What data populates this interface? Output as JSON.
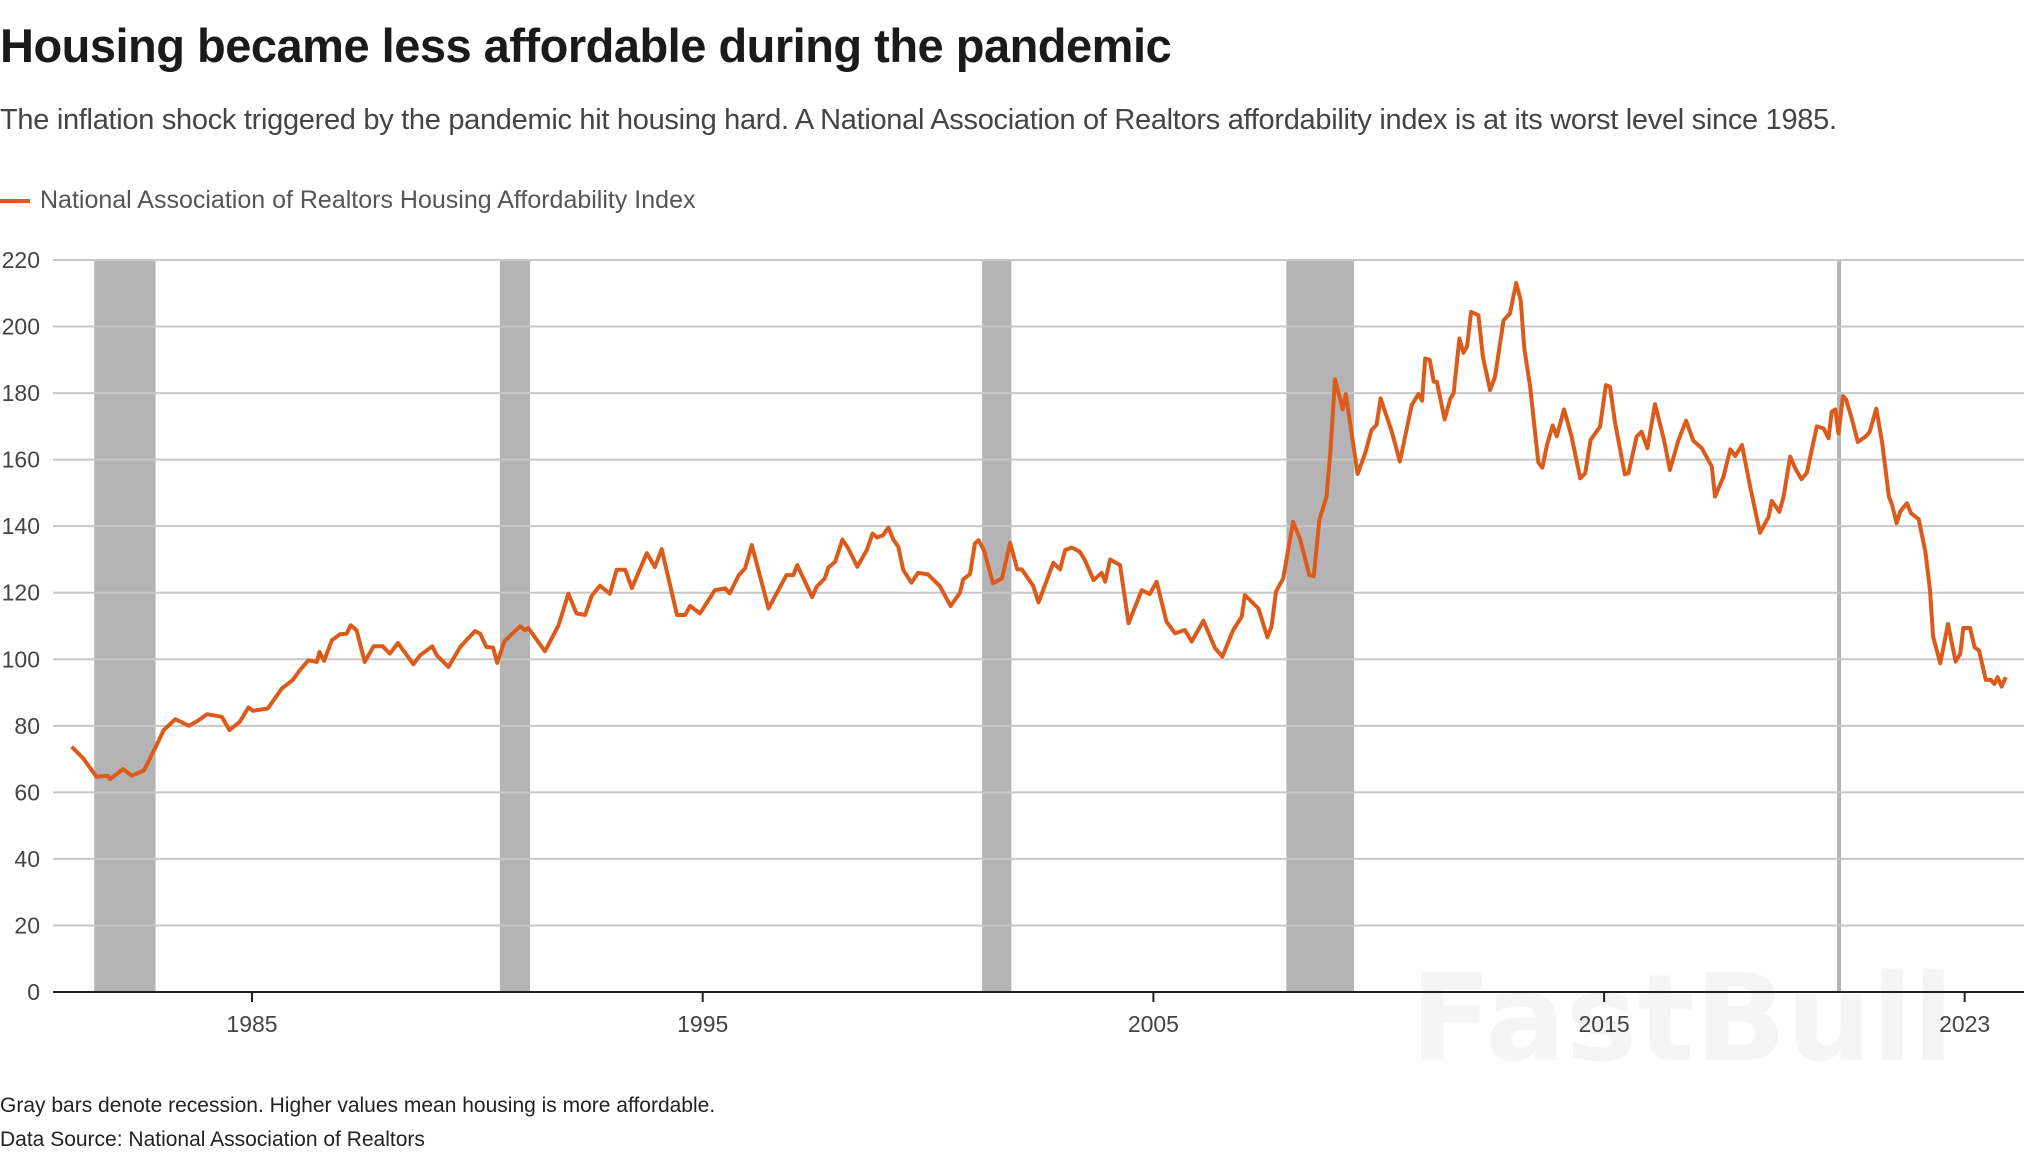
{
  "header": {
    "title": "Housing became less affordable during the pandemic",
    "subtitle": "The inflation shock triggered by the pandemic hit housing hard. A National Association of Realtors affordability index is at its worst level since 1985."
  },
  "footer": {
    "note": "Gray bars denote recession. Higher values mean housing is more affordable.",
    "source": "Data Source: National Association of Realtors"
  },
  "watermark": "FastBull",
  "colors": {
    "line": "#dc5b1a",
    "recession": "#b4b4b4",
    "grid": "#c8c8c8",
    "axis": "#222222"
  },
  "chart_data": {
    "type": "line",
    "title": "Housing became less affordable during the pandemic",
    "xlabel": "",
    "ylabel": "",
    "xlim": [
      1980.6,
      2024.3
    ],
    "ylim": [
      0,
      220
    ],
    "grid": true,
    "legend_placement": "top-left",
    "yticks": [
      "0",
      "20",
      "40",
      "60",
      "80",
      "100",
      "120",
      "140",
      "160",
      "180",
      "200",
      "220"
    ],
    "xticks": [
      {
        "value": 1985,
        "label": "1985"
      },
      {
        "value": 1995,
        "label": "1995"
      },
      {
        "value": 2005,
        "label": "2005"
      },
      {
        "value": 2015,
        "label": "2015"
      },
      {
        "value": 2023,
        "label": "2023"
      }
    ],
    "recessions": [
      [
        1981.5,
        1982.86
      ],
      [
        1990.5,
        1991.17
      ],
      [
        2001.2,
        2001.85
      ],
      [
        2007.95,
        2009.45
      ],
      [
        2020.17,
        2020.25
      ]
    ],
    "series": [
      {
        "name": "National Association of Realtors Housing Affordability Index",
        "color": "#dc5b1a",
        "points": [
          [
            1981.0,
            73.7
          ],
          [
            1981.25,
            70.3
          ],
          [
            1981.55,
            64.7
          ],
          [
            1981.8,
            65
          ],
          [
            1981.85,
            64
          ],
          [
            1982.14,
            67
          ],
          [
            1982.33,
            65
          ],
          [
            1982.6,
            66.5
          ],
          [
            1982.9,
            74.7
          ],
          [
            1983.04,
            78.7
          ],
          [
            1983.3,
            82
          ],
          [
            1983.6,
            80
          ],
          [
            1983.8,
            81.5
          ],
          [
            1984.0,
            83.5
          ],
          [
            1984.33,
            82.7
          ],
          [
            1984.5,
            78.7
          ],
          [
            1984.73,
            81.2
          ],
          [
            1984.92,
            85.5
          ],
          [
            1985.02,
            84.5
          ],
          [
            1985.35,
            85.2
          ],
          [
            1985.66,
            91.2
          ],
          [
            1985.9,
            93.7
          ],
          [
            1986.06,
            96.7
          ],
          [
            1986.25,
            99.7
          ],
          [
            1986.44,
            99.2
          ],
          [
            1986.5,
            102.2
          ],
          [
            1986.6,
            99.5
          ],
          [
            1986.77,
            105.7
          ],
          [
            1986.95,
            107.5
          ],
          [
            1987.1,
            107.7
          ],
          [
            1987.19,
            110.2
          ],
          [
            1987.32,
            108.7
          ],
          [
            1987.5,
            99.2
          ],
          [
            1987.7,
            103.9
          ],
          [
            1987.9,
            103.9
          ],
          [
            1988.06,
            101.7
          ],
          [
            1988.24,
            104.9
          ],
          [
            1988.58,
            98.5
          ],
          [
            1988.73,
            101.2
          ],
          [
            1989.0,
            103.9
          ],
          [
            1989.1,
            101.2
          ],
          [
            1989.36,
            97.7
          ],
          [
            1989.62,
            103.7
          ],
          [
            1989.77,
            105.9
          ],
          [
            1989.95,
            108.5
          ],
          [
            1990.06,
            107.7
          ],
          [
            1990.2,
            103.7
          ],
          [
            1990.35,
            103.5
          ],
          [
            1990.44,
            98.9
          ],
          [
            1990.6,
            105.4
          ],
          [
            1990.95,
            109.9
          ],
          [
            1991.06,
            108.7
          ],
          [
            1991.13,
            109.4
          ],
          [
            1991.5,
            102.4
          ],
          [
            1991.8,
            110.2
          ],
          [
            1992.02,
            119.7
          ],
          [
            1992.2,
            113.8
          ],
          [
            1992.39,
            113.3
          ],
          [
            1992.54,
            119.1
          ],
          [
            1992.72,
            122.1
          ],
          [
            1992.94,
            119.7
          ],
          [
            1993.09,
            126.9
          ],
          [
            1993.28,
            126.9
          ],
          [
            1993.43,
            121.4
          ],
          [
            1993.76,
            131.9
          ],
          [
            1993.94,
            127.7
          ],
          [
            1994.09,
            133.1
          ],
          [
            1994.43,
            113.3
          ],
          [
            1994.61,
            113.3
          ],
          [
            1994.72,
            116
          ],
          [
            1994.94,
            113.8
          ],
          [
            1995.27,
            120.8
          ],
          [
            1995.5,
            121.3
          ],
          [
            1995.6,
            119.8
          ],
          [
            1995.8,
            125.3
          ],
          [
            1995.94,
            127.3
          ],
          [
            1996.09,
            134.3
          ],
          [
            1996.46,
            115.3
          ],
          [
            1996.86,
            125.3
          ],
          [
            1997.01,
            125.3
          ],
          [
            1997.1,
            128.3
          ],
          [
            1997.43,
            118.7
          ],
          [
            1997.53,
            121.8
          ],
          [
            1997.71,
            124.3
          ],
          [
            1997.79,
            127.6
          ],
          [
            1997.94,
            129.3
          ],
          [
            1998.1,
            136
          ],
          [
            1998.23,
            133.3
          ],
          [
            1998.43,
            127.8
          ],
          [
            1998.64,
            132.8
          ],
          [
            1998.77,
            137.8
          ],
          [
            1998.87,
            136.6
          ],
          [
            1999.0,
            137.3
          ],
          [
            1999.12,
            139.6
          ],
          [
            1999.23,
            136
          ],
          [
            1999.34,
            133.8
          ],
          [
            1999.45,
            126.8
          ],
          [
            1999.63,
            123
          ],
          [
            1999.78,
            126
          ],
          [
            2000.0,
            125.5
          ],
          [
            2000.26,
            122
          ],
          [
            2000.5,
            116
          ],
          [
            2000.71,
            120
          ],
          [
            2000.78,
            124
          ],
          [
            2000.93,
            125.6
          ],
          [
            2001.04,
            134.8
          ],
          [
            2001.12,
            135.8
          ],
          [
            2001.24,
            132.8
          ],
          [
            2001.44,
            122.8
          ],
          [
            2001.64,
            124.3
          ],
          [
            2001.82,
            135
          ],
          [
            2001.98,
            127
          ],
          [
            2002.08,
            127
          ],
          [
            2002.33,
            122.1
          ],
          [
            2002.45,
            117.1
          ],
          [
            2002.78,
            129
          ],
          [
            2002.93,
            127
          ],
          [
            2003.04,
            132.8
          ],
          [
            2003.19,
            133.6
          ],
          [
            2003.37,
            132.3
          ],
          [
            2003.48,
            129.8
          ],
          [
            2003.67,
            123.8
          ],
          [
            2003.85,
            126
          ],
          [
            2003.93,
            123.3
          ],
          [
            2004.04,
            130
          ],
          [
            2004.26,
            128.3
          ],
          [
            2004.45,
            110.8
          ],
          [
            2004.74,
            120.8
          ],
          [
            2004.92,
            119.6
          ],
          [
            2005.07,
            123.3
          ],
          [
            2005.29,
            111.3
          ],
          [
            2005.48,
            107.8
          ],
          [
            2005.7,
            108.8
          ],
          [
            2005.85,
            105.3
          ],
          [
            2006.11,
            111.6
          ],
          [
            2006.37,
            103.3
          ],
          [
            2006.53,
            100.8
          ],
          [
            2006.77,
            108.8
          ],
          [
            2006.96,
            112.8
          ],
          [
            2007.03,
            119.3
          ],
          [
            2007.33,
            115.3
          ],
          [
            2007.53,
            106.6
          ],
          [
            2007.62,
            109.8
          ],
          [
            2007.72,
            120.3
          ],
          [
            2007.88,
            124.3
          ],
          [
            2008.1,
            141.3
          ],
          [
            2008.25,
            136.3
          ],
          [
            2008.46,
            125.3
          ],
          [
            2008.56,
            125
          ],
          [
            2008.68,
            141.8
          ],
          [
            2008.84,
            148.8
          ],
          [
            2008.93,
            162.8
          ],
          [
            2009.03,
            184.1
          ],
          [
            2009.2,
            175.1
          ],
          [
            2009.27,
            179.7
          ],
          [
            2009.53,
            155.7
          ],
          [
            2009.7,
            161.9
          ],
          [
            2009.84,
            168.9
          ],
          [
            2009.95,
            170.4
          ],
          [
            2010.04,
            178.4
          ],
          [
            2010.29,
            168.4
          ],
          [
            2010.47,
            159.4
          ],
          [
            2010.73,
            176.4
          ],
          [
            2010.88,
            179.7
          ],
          [
            2010.96,
            177.7
          ],
          [
            2011.03,
            190.4
          ],
          [
            2011.13,
            190
          ],
          [
            2011.22,
            183.4
          ],
          [
            2011.29,
            183.4
          ],
          [
            2011.46,
            172.1
          ],
          [
            2011.59,
            178.4
          ],
          [
            2011.66,
            179.9
          ],
          [
            2011.79,
            196.4
          ],
          [
            2011.88,
            192.1
          ],
          [
            2011.96,
            194.1
          ],
          [
            2012.05,
            204.4
          ],
          [
            2012.21,
            203.4
          ],
          [
            2012.31,
            190.9
          ],
          [
            2012.47,
            180.9
          ],
          [
            2012.58,
            184.9
          ],
          [
            2012.77,
            201.9
          ],
          [
            2012.91,
            203.9
          ],
          [
            2013.05,
            213.1
          ],
          [
            2013.15,
            207.9
          ],
          [
            2013.23,
            193.4
          ],
          [
            2013.36,
            181.8
          ],
          [
            2013.54,
            159.2
          ],
          [
            2013.63,
            157.6
          ],
          [
            2013.73,
            164.3
          ],
          [
            2013.86,
            170.3
          ],
          [
            2013.95,
            167
          ],
          [
            2014.11,
            175.1
          ],
          [
            2014.28,
            166.9
          ],
          [
            2014.47,
            154.4
          ],
          [
            2014.58,
            155.9
          ],
          [
            2014.7,
            165.9
          ],
          [
            2014.91,
            169.9
          ],
          [
            2015.04,
            182.4
          ],
          [
            2015.13,
            181.9
          ],
          [
            2015.24,
            171.4
          ],
          [
            2015.46,
            155.6
          ],
          [
            2015.54,
            155.9
          ],
          [
            2015.72,
            166.9
          ],
          [
            2015.83,
            168.4
          ],
          [
            2015.96,
            163.4
          ],
          [
            2016.13,
            176.7
          ],
          [
            2016.33,
            165.9
          ],
          [
            2016.46,
            156.9
          ],
          [
            2016.65,
            165.9
          ],
          [
            2016.82,
            171.7
          ],
          [
            2016.98,
            165.7
          ],
          [
            2017.17,
            163.4
          ],
          [
            2017.39,
            157.9
          ],
          [
            2017.46,
            148.9
          ],
          [
            2017.65,
            154.9
          ],
          [
            2017.8,
            163.1
          ],
          [
            2017.91,
            161.1
          ],
          [
            2018.06,
            164.4
          ],
          [
            2018.24,
            151.9
          ],
          [
            2018.46,
            138
          ],
          [
            2018.65,
            142.8
          ],
          [
            2018.72,
            147.6
          ],
          [
            2018.89,
            144.3
          ],
          [
            2018.98,
            148.8
          ],
          [
            2019.13,
            160.9
          ],
          [
            2019.24,
            157.4
          ],
          [
            2019.38,
            154.1
          ],
          [
            2019.5,
            156.1
          ],
          [
            2019.72,
            170
          ],
          [
            2019.87,
            169.4
          ],
          [
            2019.98,
            166.4
          ],
          [
            2020.05,
            174.4
          ],
          [
            2020.13,
            175.1
          ],
          [
            2020.2,
            167.9
          ],
          [
            2020.3,
            179.1
          ],
          [
            2020.37,
            178.1
          ],
          [
            2020.5,
            172.1
          ],
          [
            2020.63,
            165.3
          ],
          [
            2020.8,
            166.9
          ],
          [
            2020.89,
            168.3
          ],
          [
            2021.04,
            175.3
          ],
          [
            2021.17,
            165
          ],
          [
            2021.32,
            148.9
          ],
          [
            2021.39,
            146.4
          ],
          [
            2021.49,
            140.9
          ],
          [
            2021.57,
            144.4
          ],
          [
            2021.72,
            146.9
          ],
          [
            2021.81,
            143.9
          ],
          [
            2021.98,
            142.1
          ],
          [
            2022.13,
            132.3
          ],
          [
            2022.23,
            120.8
          ],
          [
            2022.3,
            106.8
          ],
          [
            2022.46,
            98.8
          ],
          [
            2022.63,
            110.6
          ],
          [
            2022.8,
            99.3
          ],
          [
            2022.9,
            101.6
          ],
          [
            2022.97,
            109.4
          ],
          [
            2023.12,
            109.4
          ],
          [
            2023.22,
            103.6
          ],
          [
            2023.32,
            102.6
          ],
          [
            2023.47,
            93.8
          ],
          [
            2023.58,
            93.8
          ],
          [
            2023.66,
            92.6
          ],
          [
            2023.73,
            94.6
          ],
          [
            2023.82,
            91.8
          ],
          [
            2023.91,
            94.6
          ]
        ]
      }
    ]
  }
}
